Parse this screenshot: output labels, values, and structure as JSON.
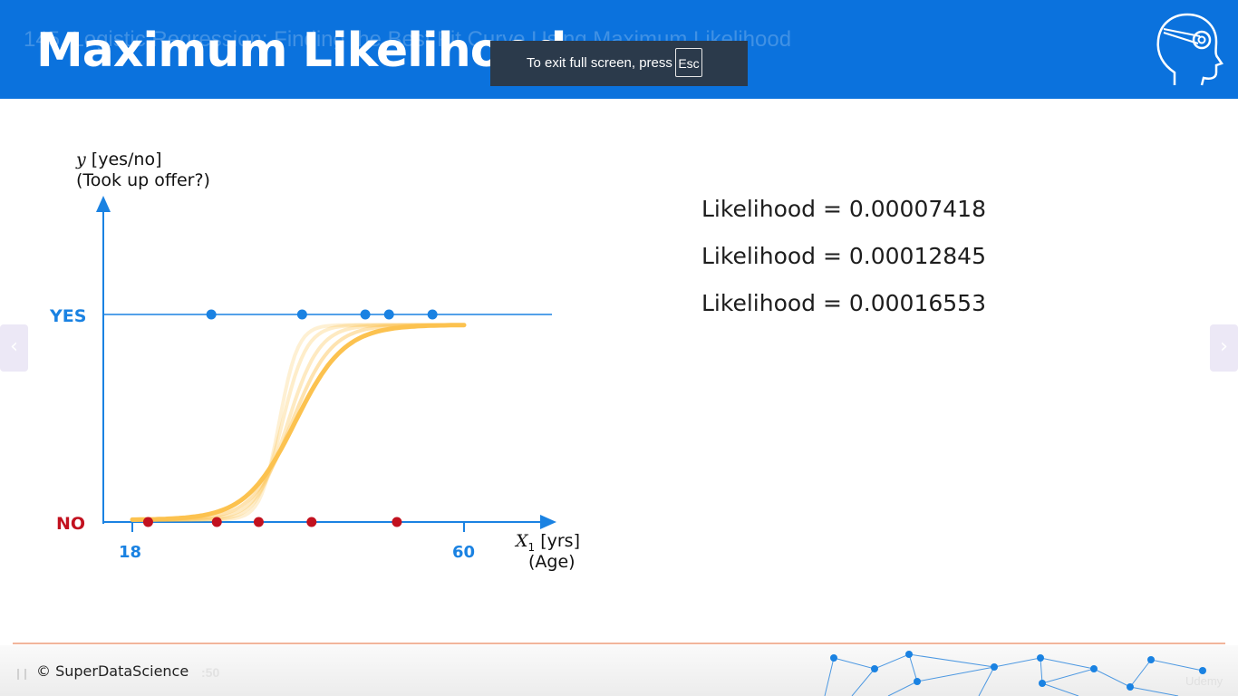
{
  "player": {
    "lecture_title": "145. Logistic Regression: Finding the Best Fit Curve Using Maximum Likelihood",
    "fullscreen_notice": "To exit full screen, press",
    "fullscreen_key": "Esc",
    "current_time": ":50",
    "watermark": "Udemy",
    "prev_icon": "chevron-left-icon",
    "next_icon": "chevron-right-icon",
    "play_icon": "pause-icon"
  },
  "slide": {
    "title": "Maximum Likelihood",
    "logo": "brain-gear-icon",
    "footer_text": "© SuperDataScience",
    "likelihoods": [
      "Likelihood = 0.00007418",
      "Likelihood = 0.00012845",
      "Likelihood = 0.00016553"
    ]
  },
  "colors": {
    "header_blue": "#0b72dd",
    "axis_blue": "#1a82e2",
    "curve_orange": "#fcc24f",
    "no_red": "#c2111f"
  },
  "chart_data": {
    "type": "scatter",
    "y_var": "y",
    "ylabel_unit": "[yes/no]",
    "ylabel_note": "(Took up offer?)",
    "x_var": "X",
    "x_sub": "1",
    "xlabel_unit": "[yrs]",
    "xlabel_note": "(Age)",
    "yes_label": "YES",
    "no_label": "NO",
    "x_ticks": [
      18,
      60
    ],
    "xlim": [
      18,
      60
    ],
    "ylim": [
      0,
      1
    ],
    "yes_points": [
      28,
      39.5,
      47.5,
      50.5,
      56
    ],
    "no_points": [
      20,
      28.7,
      34,
      40.7,
      51.5
    ],
    "curves": [
      {
        "midpoint": 36.6,
        "steepness": 0.85,
        "opacity": 0.25
      },
      {
        "midpoint": 37.0,
        "steepness": 0.65,
        "opacity": 0.3
      },
      {
        "midpoint": 37.7,
        "steepness": 0.5,
        "opacity": 0.35
      },
      {
        "midpoint": 38.2,
        "steepness": 0.4,
        "opacity": 0.45
      },
      {
        "midpoint": 38.6,
        "steepness": 0.32,
        "opacity": 1.0
      }
    ]
  }
}
